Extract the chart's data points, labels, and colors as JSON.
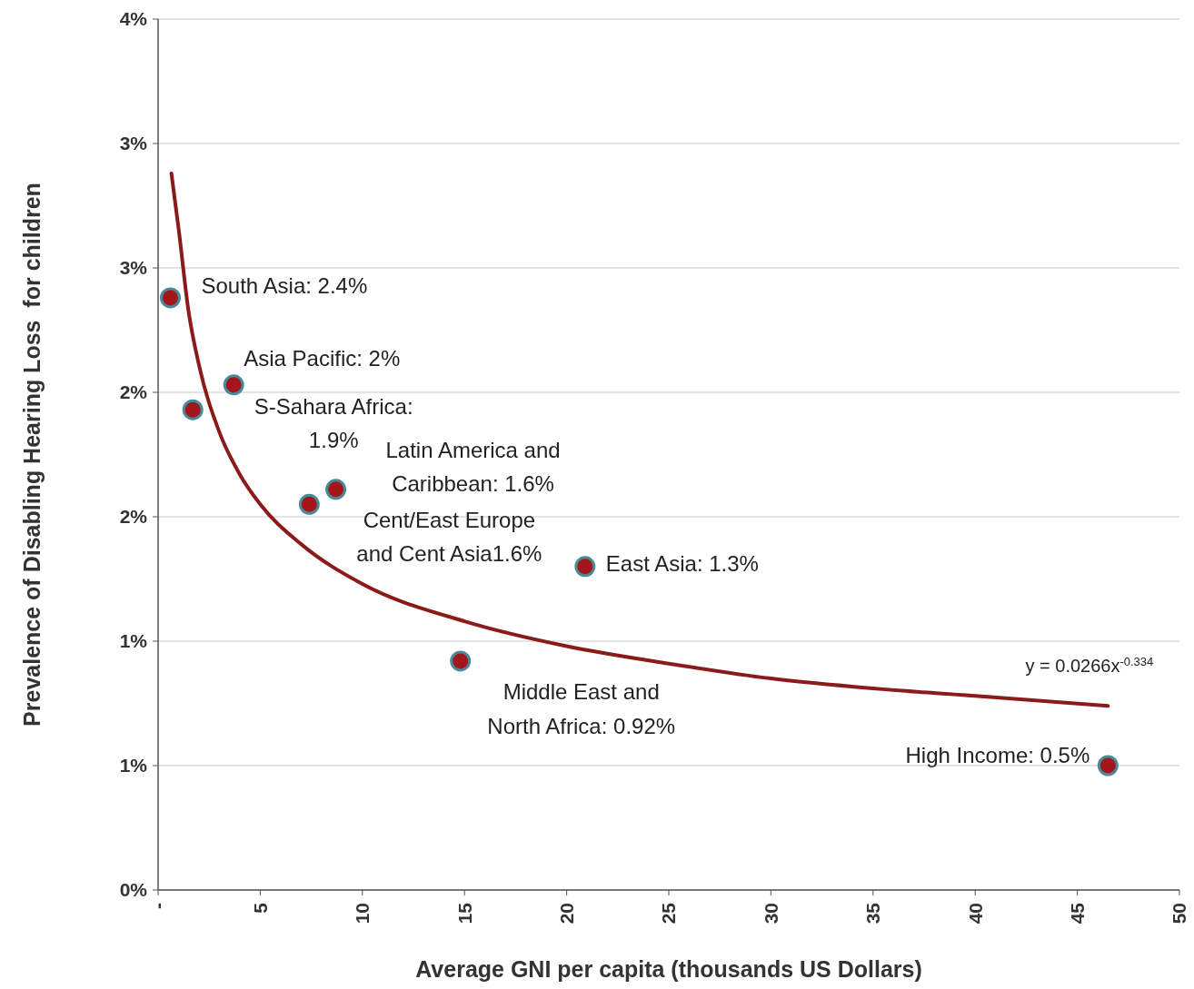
{
  "chart_data": {
    "type": "scatter",
    "xlabel": "Average GNI per capita (thousands US Dollars)",
    "ylabel": "Prevalence of Disabling Hearing Loss  for children",
    "xlim": [
      0,
      50
    ],
    "xticks": [
      {
        "value": 0,
        "label": "-"
      },
      5,
      10,
      15,
      20,
      25,
      30,
      35,
      40,
      45,
      50
    ],
    "ylim": [
      0,
      3.5
    ],
    "yticks": [
      {
        "value": 0,
        "label": "0%"
      },
      {
        "value": 0.5,
        "label": "1%"
      },
      {
        "value": 1,
        "label": "1%"
      },
      {
        "value": 1.5,
        "label": "2%"
      },
      {
        "value": 2,
        "label": "2%"
      },
      {
        "value": 2.5,
        "label": "3%"
      },
      {
        "value": 3,
        "label": "3%"
      },
      {
        "value": 3.5,
        "label": "4%"
      }
    ],
    "grid": "y",
    "marker": "circle",
    "series": [
      {
        "type": "line",
        "color": "#8b1a1a",
        "marker": "none",
        "line_style": "solid",
        "x": [
          0.65,
          1,
          1.5,
          2,
          3,
          4,
          5,
          7,
          10,
          15,
          20,
          25,
          30,
          35,
          40,
          46.5
        ],
        "values": [
          2.88,
          2.66,
          2.32,
          2.11,
          1.84,
          1.67,
          1.55,
          1.39,
          1.23,
          1.08,
          0.98,
          0.91,
          0.85,
          0.81,
          0.78,
          0.74
        ]
      },
      {
        "color": "#a3161c",
        "x": [
          0.6,
          3.7,
          1.7,
          8.7,
          7.4,
          20.9,
          14.8,
          46.5
        ],
        "values": [
          2.38,
          2.03,
          1.93,
          1.61,
          1.55,
          1.3,
          0.92,
          0.5
        ]
      }
    ],
    "annotations": [
      {
        "text": "South Asia: 2.4%",
        "x": 0.6,
        "y": 2.38
      },
      {
        "text": "Asia Pacific: 2%",
        "x": 3.7,
        "y": 2.03
      },
      {
        "text": "S-Sahara Africa:\n1.9%",
        "x": 1.7,
        "y": 1.93
      },
      {
        "text": "Latin America and\nCaribbean: 1.6%",
        "x": 8.7,
        "y": 1.61
      },
      {
        "text": "Cent/East Europe\nand Cent Asia1.6%",
        "x": 7.4,
        "y": 1.55
      },
      {
        "text": "East Asia: 1.3%",
        "x": 20.9,
        "y": 1.3
      },
      {
        "text": "Middle East and\nNorth Africa: 0.92%",
        "x": 14.8,
        "y": 0.92
      },
      {
        "text": "High Income: 0.5%",
        "x": 46.5,
        "y": 0.5
      },
      {
        "text": "y = 0.0266x$^{-0.334}$",
        "x": 46.5,
        "y": 0.74
      }
    ]
  }
}
